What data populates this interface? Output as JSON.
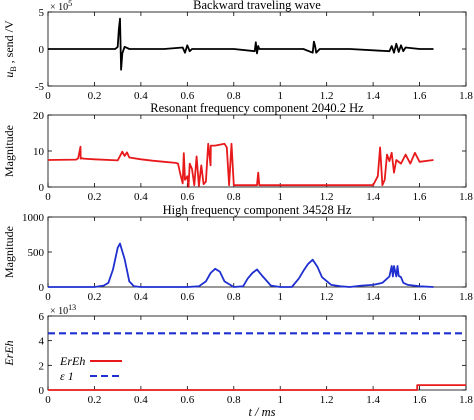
{
  "x_axis_label": "t / ms",
  "chart_data": [
    {
      "type": "line",
      "title": "Backward traveling wave",
      "ylabel_main": "u",
      "ylabel_sub": "B",
      "ylabel_rest": " , send /V",
      "y_exponent": "× 10",
      "y_exponent_power": "5",
      "xlim": [
        0,
        1.8
      ],
      "ylim": [
        -5,
        5
      ],
      "xticks": [
        0,
        0.2,
        0.4,
        0.6,
        0.8,
        1,
        1.2,
        1.4,
        1.6,
        1.8
      ],
      "yticks": [
        -5,
        0,
        5
      ],
      "xtick_labels": [
        "0",
        "0.2",
        "0.4",
        "0.6",
        "0.8",
        "1",
        "1.2",
        "1.4",
        "1.6",
        "1.8"
      ],
      "ytick_labels": [
        "-5",
        "0",
        "5"
      ],
      "series": [
        {
          "color": "#000000",
          "x": [
            0,
            0.29,
            0.3,
            0.305,
            0.31,
            0.315,
            0.32,
            0.33,
            0.35,
            0.5,
            0.58,
            0.59,
            0.6,
            0.61,
            0.62,
            0.8,
            0.89,
            0.895,
            0.9,
            0.905,
            0.91,
            1.1,
            1.14,
            1.145,
            1.15,
            1.155,
            1.17,
            1.3,
            1.47,
            1.48,
            1.49,
            1.5,
            1.51,
            1.52,
            1.53,
            1.54,
            1.6,
            1.66
          ],
          "y": [
            0,
            0,
            0.3,
            2.6,
            4.1,
            -2.8,
            -0.6,
            0.3,
            0,
            0,
            0.2,
            -0.5,
            0.5,
            -0.3,
            0,
            0,
            -0.3,
            0.9,
            -0.6,
            0.4,
            0,
            0,
            -0.5,
            1.0,
            0.4,
            -0.5,
            0,
            0,
            -0.3,
            0.4,
            -0.5,
            0.7,
            -0.4,
            0.5,
            -0.3,
            0.2,
            0,
            0
          ]
        }
      ]
    },
    {
      "type": "line",
      "title": "Resonant frequency component 2040.2 Hz",
      "ylabel": "Magnitude",
      "xlim": [
        0,
        1.8
      ],
      "ylim": [
        0,
        20
      ],
      "xticks": [
        0,
        0.2,
        0.4,
        0.6,
        0.8,
        1,
        1.2,
        1.4,
        1.6,
        1.8
      ],
      "yticks": [
        0,
        10,
        20
      ],
      "xtick_labels": [
        "0",
        "0.2",
        "0.4",
        "0.6",
        "0.8",
        "1",
        "1.2",
        "1.4",
        "1.6",
        "1.8"
      ],
      "ytick_labels": [
        "0",
        "10",
        "20"
      ],
      "series": [
        {
          "color": "#e8191b",
          "x": [
            0,
            0.12,
            0.121,
            0.13,
            0.14,
            0.141,
            0.15,
            0.151,
            0.2,
            0.3,
            0.32,
            0.33,
            0.34,
            0.35,
            0.4,
            0.45,
            0.5,
            0.55,
            0.56,
            0.57,
            0.58,
            0.585,
            0.59,
            0.6,
            0.605,
            0.61,
            0.62,
            0.63,
            0.64,
            0.65,
            0.66,
            0.67,
            0.68,
            0.69,
            0.7,
            0.701,
            0.72,
            0.76,
            0.77,
            0.78,
            0.79,
            0.8,
            0.9,
            0.905,
            0.91,
            1.0,
            1.1,
            1.2,
            1.3,
            1.4,
            1.42,
            1.43,
            1.44,
            1.45,
            1.46,
            1.47,
            1.48,
            1.49,
            1.5,
            1.52,
            1.54,
            1.56,
            1.58,
            1.6,
            1.66
          ],
          "y": [
            7.5,
            7.6,
            7.6,
            8.0,
            11.2,
            7.9,
            8.0,
            7.9,
            7.7,
            7.4,
            9.8,
            8.6,
            9.6,
            8.2,
            7.7,
            7.3,
            7.0,
            6.7,
            6.5,
            3.5,
            1.0,
            9.4,
            2.0,
            3.0,
            0,
            6.5,
            5.0,
            0.5,
            8.5,
            0.3,
            6.0,
            0.8,
            1.5,
            12.0,
            6.0,
            11.5,
            11.5,
            12.0,
            11.0,
            0.5,
            12.0,
            0.5,
            0.5,
            4.0,
            0.5,
            0.5,
            0.5,
            0.5,
            0.5,
            0.5,
            3.0,
            11.0,
            0.5,
            2.0,
            9.0,
            7.2,
            9.5,
            4.0,
            7.5,
            6.5,
            9.0,
            6.5,
            9.5,
            7.0,
            7.5
          ]
        }
      ]
    },
    {
      "type": "line",
      "title": "High frequency component 34528 Hz",
      "ylabel": "Magnitude",
      "xlim": [
        0,
        1.8
      ],
      "ylim": [
        0,
        1000
      ],
      "xticks": [
        0,
        0.2,
        0.4,
        0.6,
        0.8,
        1,
        1.2,
        1.4,
        1.6,
        1.8
      ],
      "yticks": [
        0,
        500,
        1000
      ],
      "xtick_labels": [
        "0",
        "0.2",
        "0.4",
        "0.6",
        "0.8",
        "1",
        "1.2",
        "1.4",
        "1.6",
        "1.8"
      ],
      "ytick_labels": [
        "0",
        "500",
        "1000"
      ],
      "series": [
        {
          "color": "#1f2fd0",
          "x": [
            0,
            0.2,
            0.24,
            0.26,
            0.28,
            0.3,
            0.31,
            0.33,
            0.35,
            0.37,
            0.4,
            0.5,
            0.6,
            0.65,
            0.68,
            0.7,
            0.72,
            0.74,
            0.76,
            0.8,
            0.84,
            0.86,
            0.88,
            0.9,
            0.92,
            0.96,
            1.0,
            1.05,
            1.08,
            1.1,
            1.12,
            1.14,
            1.16,
            1.18,
            1.22,
            1.26,
            1.3,
            1.35,
            1.4,
            1.44,
            1.47,
            1.48,
            1.485,
            1.49,
            1.5,
            1.505,
            1.51,
            1.52,
            1.53,
            1.55,
            1.6,
            1.66
          ],
          "y": [
            0,
            0,
            20,
            60,
            250,
            560,
            620,
            400,
            80,
            10,
            0,
            0,
            0,
            10,
            80,
            200,
            260,
            220,
            80,
            0,
            10,
            120,
            200,
            250,
            170,
            20,
            0,
            0,
            120,
            230,
            330,
            390,
            290,
            140,
            30,
            10,
            0,
            20,
            30,
            60,
            150,
            300,
            150,
            300,
            150,
            300,
            160,
            140,
            60,
            30,
            10,
            0
          ]
        }
      ]
    },
    {
      "type": "line",
      "title": "",
      "ylabel": "ErEh",
      "y_exponent": "× 10",
      "y_exponent_power": "13",
      "xlim": [
        0,
        1.8
      ],
      "ylim": [
        0,
        6
      ],
      "xticks": [
        0,
        0.2,
        0.4,
        0.6,
        0.8,
        1,
        1.2,
        1.4,
        1.6,
        1.8
      ],
      "yticks": [
        0,
        2,
        4,
        6
      ],
      "xtick_labels": [
        "0",
        "0.2",
        "0.4",
        "0.6",
        "0.8",
        "1",
        "1.2",
        "1.4",
        "1.6",
        "1.8"
      ],
      "ytick_labels": [
        "0",
        "2",
        "4",
        "6"
      ],
      "legend_position": "center-left",
      "series": [
        {
          "name": "ErEh",
          "color": "#e8191b",
          "dash": "solid",
          "x": [
            0,
            1.59,
            1.59,
            1.8
          ],
          "y": [
            0,
            0,
            0.4,
            0.4
          ]
        },
        {
          "name": "ε 1",
          "color": "#1f2fd0",
          "dash": "dashed",
          "x": [
            0,
            1.8
          ],
          "y": [
            4.6,
            4.6
          ]
        }
      ]
    }
  ]
}
